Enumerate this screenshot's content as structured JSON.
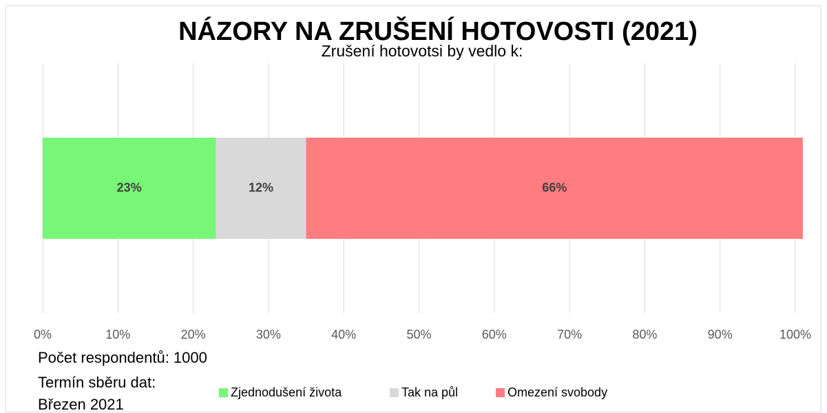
{
  "chart_data": {
    "type": "stacked_bar_horizontal",
    "title": "NÁZORY NA ZRUŠENÍ HOTOVOSTI (2021)",
    "subtitle": "Zrušení hotovotsi by vedlo k:",
    "annotations": [
      "Počet respondentů: 1000",
      "Termín sběru dat:",
      "Březen 2021"
    ],
    "series": [
      {
        "name": "Zjednodušení života",
        "color": "#77f677",
        "values": [
          23
        ],
        "value_labels": [
          "23%"
        ]
      },
      {
        "name": "Tak na půl",
        "color": "#d9d9d9",
        "values": [
          12
        ],
        "value_labels": [
          "12%"
        ]
      },
      {
        "name": "Omezení svobody",
        "color": "#ff7c80",
        "values": [
          66
        ],
        "value_labels": [
          "66%"
        ]
      }
    ],
    "xlim": [
      0,
      100
    ],
    "xticks": [
      {
        "value": 0,
        "label": "0%"
      },
      {
        "value": 10,
        "label": "10%"
      },
      {
        "value": 20,
        "label": "20%"
      },
      {
        "value": 30,
        "label": "30%"
      },
      {
        "value": 40,
        "label": "40%"
      },
      {
        "value": 50,
        "label": "50%"
      },
      {
        "value": 60,
        "label": "60%"
      },
      {
        "value": 70,
        "label": "70%"
      },
      {
        "value": 80,
        "label": "80%"
      },
      {
        "value": 90,
        "label": "90%"
      },
      {
        "value": 100,
        "label": "100%"
      }
    ],
    "grid": true,
    "legend": "bottom"
  }
}
